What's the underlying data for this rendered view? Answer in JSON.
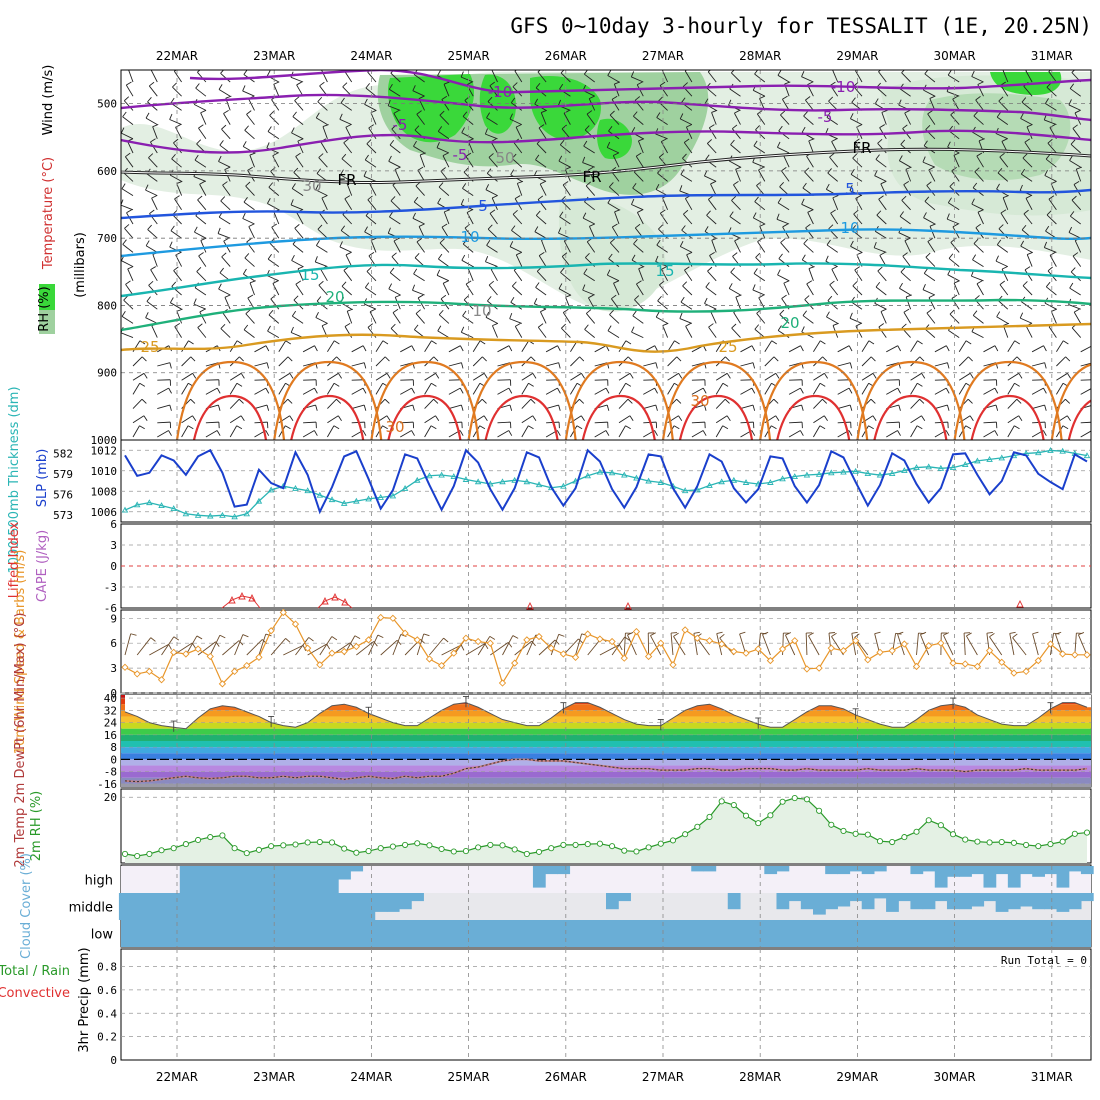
{
  "title": "GFS 0~10day 3-hourly for TESSALIT (1E, 20.25N)",
  "dates": [
    "22MAR",
    "23MAR",
    "24MAR",
    "25MAR",
    "26MAR",
    "27MAR",
    "28MAR",
    "29MAR",
    "30MAR",
    "31MAR"
  ],
  "colors": {
    "frame": "#000000",
    "grid": "#999999",
    "rh_light": "#d8ead8",
    "rh_mid": "#9fd19f",
    "rh_bright": "#2ee02e",
    "slp": "#1a3fcc",
    "thickness": "#2ab5b5",
    "wind10": "#e8962a",
    "rh2m": "#2a9a2a",
    "cloud": "#6aaed6",
    "li": "#e03030"
  },
  "chart_data": [
    {
      "type": "heatmap",
      "name": "upper-air cross section",
      "ylabel_parts": [
        "RH (%)",
        "Temperature (°C)",
        "Wind (m/s)"
      ],
      "ylabel2": "(millibars)",
      "yticks": [
        500,
        600,
        700,
        800,
        900,
        1000
      ],
      "ylim": [
        450,
        1000
      ],
      "contour_labels": [
        "-10",
        "-10",
        "-5",
        "-5",
        "FR",
        "FR",
        "FR",
        "-5",
        "5",
        "5",
        "10",
        "10",
        "15",
        "15",
        "20",
        "20",
        "25",
        "25",
        "30",
        "30",
        "50",
        "30",
        "10"
      ],
      "isotherms_approx": {
        "-10": 500,
        "-5": 545,
        "FR": 610,
        "5": 660,
        "10": 705,
        "15": 765,
        "20": 810,
        "25": 860
      }
    },
    {
      "type": "line",
      "name": "slp and thickness",
      "ylabel_left": "1000-500mb Thickness (dm)",
      "ylabel_right": "SLP (mb)",
      "yticks_left": [
        "582",
        "579",
        "576",
        "573"
      ],
      "yticks_right": [
        "1012",
        "1010",
        "1008",
        "1006"
      ],
      "slp_range": [
        1005,
        1013
      ],
      "series": [
        {
          "name": "SLP (mb)",
          "values": [
            1011.5,
            1009.5,
            1009.8,
            1011.5,
            1011.0,
            1009.6,
            1011.4,
            1012.0,
            1009.8,
            1006.5,
            1006.7,
            1010.1,
            1008.8,
            1008.3,
            1011.8,
            1009.6,
            1006.0,
            1008.4,
            1011.4,
            1011.9,
            1009.2,
            1006.3,
            1008.1,
            1011.6,
            1011.2,
            1008.6,
            1006.2,
            1008.5,
            1012.0,
            1010.8,
            1008.2,
            1006.2,
            1008.3,
            1011.8,
            1011.3,
            1008.4,
            1006.6,
            1008.3,
            1012.0,
            1010.9,
            1008.2,
            1006.4,
            1008.4,
            1011.6,
            1011.4,
            1008.3,
            1006.4,
            1008.5,
            1011.6,
            1010.9,
            1008.3,
            1006.9,
            1008.2,
            1011.4,
            1011.2,
            1008.5,
            1006.9,
            1008.6,
            1011.9,
            1011.3,
            1008.9,
            1006.6,
            1008.6,
            1011.7,
            1011.0,
            1008.7,
            1006.9,
            1008.3,
            1011.6,
            1011.7,
            1009.6,
            1007.7,
            1009.0,
            1011.8,
            1011.5,
            1009.7,
            1008.9,
            1008.2,
            1011.6,
            1010.9
          ]
        },
        {
          "name": "1000-500mb Thickness (dm)",
          "values": [
            573.6,
            574.3,
            574.6,
            574.2,
            573.8,
            573.1,
            572.9,
            572.8,
            572.9,
            572.7,
            573.1,
            574.8,
            576.3,
            576.8,
            576.5,
            576.2,
            575.6,
            575.0,
            574.5,
            574.8,
            575.1,
            575.3,
            575.5,
            576.5,
            577.6,
            578.2,
            578.3,
            578.1,
            577.7,
            577.4,
            577.1,
            577.4,
            577.6,
            577.4,
            577.0,
            576.6,
            576.8,
            577.5,
            578.2,
            578.7,
            578.6,
            578.3,
            577.9,
            577.5,
            577.3,
            576.8,
            576.2,
            576.3,
            576.9,
            577.4,
            577.6,
            577.3,
            577.1,
            577.3,
            577.8,
            578.1,
            578.3,
            578.4,
            578.6,
            578.7,
            578.8,
            578.5,
            578.3,
            578.5,
            578.9,
            579.3,
            579.4,
            579.2,
            579.3,
            579.7,
            580.2,
            580.4,
            580.6,
            580.9,
            581.2,
            581.3,
            581.6,
            581.5,
            581.2,
            580.9
          ]
        }
      ]
    },
    {
      "type": "line",
      "name": "lifted index and cape",
      "ylabel_left": "Lifted Index",
      "ylabel_right": "CAPE (J/kg)",
      "yticks": [
        "6",
        "3",
        "0",
        "-3",
        "-6"
      ],
      "lim": [
        -6,
        6
      ]
    },
    {
      "type": "line",
      "name": "10m wind",
      "ylabel": "10m Wind Speed & Barbs (m/s)",
      "yticks": [
        "9",
        "6",
        "3",
        "0"
      ],
      "ylim": [
        0,
        10
      ],
      "series": [
        {
          "name": "10m wind speed",
          "values": [
            3.1,
            2.3,
            2.6,
            1.6,
            4.9,
            4.7,
            5.3,
            4.4,
            1.1,
            2.6,
            3.3,
            4.3,
            7.5,
            9.7,
            8.3,
            5.4,
            3.4,
            4.8,
            5.0,
            5.6,
            6.4,
            9.1,
            9.0,
            7.2,
            6.4,
            4.1,
            3.3,
            4.8,
            6.6,
            6.2,
            6.0,
            1.2,
            3.6,
            6.4,
            6.8,
            5.4,
            4.7,
            4.3,
            7.1,
            6.5,
            6.2,
            4.2,
            7.4,
            4.4,
            6.0,
            3.4,
            7.6,
            6.6,
            6.3,
            5.9,
            5.0,
            4.8,
            5.3,
            3.9,
            5.3,
            6.3,
            2.9,
            3.0,
            5.4,
            5.1,
            6.3,
            4.0,
            4.9,
            5.1,
            5.9,
            3.2,
            5.7,
            6.0,
            3.6,
            3.5,
            3.2,
            5.1,
            3.7,
            2.4,
            2.6,
            3.9,
            5.9,
            4.7,
            4.6,
            4.6
          ]
        }
      ]
    },
    {
      "type": "area",
      "name": "2m temperature and dewpoint",
      "ylabel": "2m Temp 2m DewPt (6hr Min/Max) (°C)",
      "yticks": [
        "40",
        "32",
        "24",
        "16",
        "8",
        "0",
        "-8",
        "-16"
      ],
      "ylim": [
        -18,
        42
      ],
      "series": [
        {
          "name": "2m temp",
          "values": [
            31,
            28,
            24,
            22,
            21,
            20,
            27,
            33,
            35,
            34,
            31,
            28,
            24,
            22,
            21,
            24,
            30,
            35,
            36,
            34,
            30,
            27,
            24,
            22,
            22,
            27,
            32,
            36,
            37,
            34,
            30,
            26,
            24,
            22,
            22,
            27,
            33,
            37,
            37,
            34,
            30,
            26,
            23,
            22,
            22,
            27,
            32,
            35,
            36,
            33,
            29,
            26,
            23,
            21,
            21,
            26,
            31,
            35,
            35,
            33,
            29,
            26,
            23,
            21,
            21,
            26,
            32,
            35,
            36,
            34,
            29,
            26,
            23,
            22,
            22,
            27,
            33,
            37,
            37,
            34
          ]
        },
        {
          "name": "2m dewpoint",
          "values": [
            -14,
            -14.5,
            -14,
            -13,
            -12,
            -11,
            -12,
            -12.5,
            -12,
            -11,
            -11,
            -12,
            -12,
            -11,
            -12,
            -11,
            -11,
            -12,
            -13,
            -12,
            -11,
            -12,
            -12.5,
            -11,
            -12,
            -11,
            -11,
            -9,
            -6,
            -5,
            -3,
            -1,
            0,
            0,
            -1,
            -1,
            -1,
            -2,
            -3,
            -4,
            -5,
            -6,
            -6,
            -6,
            -7,
            -7,
            -7,
            -6,
            -6,
            -7,
            -7,
            -6,
            -6,
            -6,
            -7,
            -7,
            -6,
            -7,
            -7,
            -7,
            -7,
            -6,
            -7,
            -7,
            -7,
            -6,
            -7,
            -7,
            -7,
            -8,
            -7,
            -7,
            -7,
            -7,
            -6,
            -7,
            -7,
            -7,
            -7,
            -6
          ]
        }
      ]
    },
    {
      "type": "line",
      "name": "2m relative humidity",
      "ylabel": "2m RH (%)",
      "yticks": [
        "20"
      ],
      "ylim": [
        4,
        22
      ],
      "series": [
        {
          "name": "2m RH",
          "values": [
            6.2,
            5.7,
            6.2,
            7.1,
            7.6,
            8.6,
            9.6,
            10.3,
            10.7,
            7.6,
            6.4,
            7.2,
            8.1,
            8.3,
            8.5,
            9.0,
            9.1,
            9.0,
            7.5,
            6.5,
            6.9,
            7.6,
            8.0,
            8.4,
            8.8,
            8.3,
            7.4,
            6.8,
            6.9,
            7.8,
            8.4,
            8.3,
            7.3,
            6.2,
            6.7,
            7.6,
            8.4,
            8.4,
            8.6,
            8.7,
            8.1,
            7.0,
            6.8,
            7.8,
            8.7,
            9.5,
            11.0,
            12.8,
            15.2,
            19.0,
            18.1,
            15.5,
            13.7,
            15.6,
            18.9,
            19.8,
            19.5,
            16.7,
            13.3,
            11.8,
            11.1,
            10.9,
            9.3,
            9.1,
            10.3,
            11.6,
            14.4,
            13.2,
            11.0,
            9.7,
            9.2,
            9.0,
            9.1,
            8.9,
            8.4,
            8.1,
            8.6,
            9.2,
            11.1,
            11.4
          ]
        }
      ]
    },
    {
      "type": "heatmap",
      "name": "cloud cover",
      "ylabel": "Cloud Cover (%)",
      "levels": [
        "high",
        "middle",
        "low"
      ]
    },
    {
      "type": "bar",
      "name": "3hr precip",
      "ylabel_left": "Total / Rain",
      "ylabel_sub": "Convective",
      "ylabel": "3hr Precip (mm)",
      "yticks": [
        "0.8",
        "0.6",
        "0.4",
        "0.2",
        "0"
      ],
      "ylim": [
        0,
        0.95
      ],
      "run_total": "Run Total = 0",
      "values": []
    }
  ]
}
